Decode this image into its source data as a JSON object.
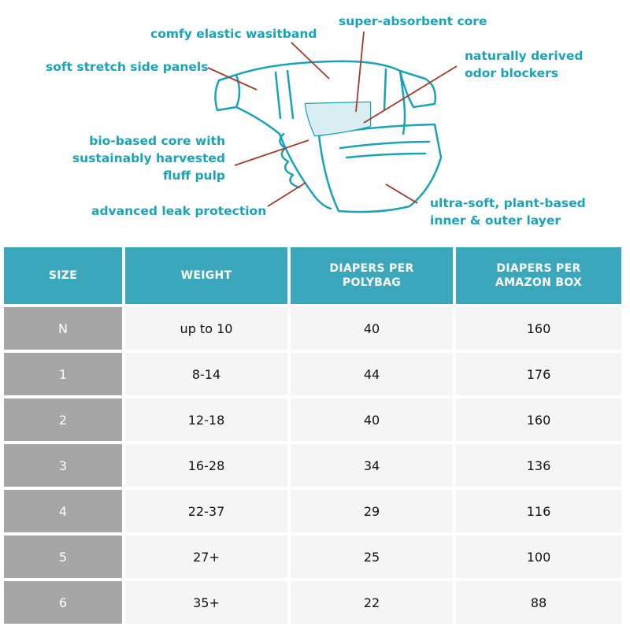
{
  "diagram": {
    "callouts": {
      "waistband": "comfy elastic wasitband",
      "core": "super-absorbent core",
      "side_panels": "soft stretch side panels",
      "odor_line1": "naturally derived",
      "odor_line2": "odor blockers",
      "bio_line1": "bio-based core with",
      "bio_line2": "sustainably harvested",
      "bio_line3": "fluff pulp",
      "leak": "advanced leak protection",
      "layer_line1": "ultra-soft, plant-based",
      "layer_line2": "inner & outer layer"
    },
    "colors": {
      "teal": "#1aa3b8",
      "leader": "#a33a2c"
    }
  },
  "table": {
    "headers": [
      "SIZE",
      "WEIGHT",
      "DIAPERS PER POLYBAG",
      "DIAPERS PER AMAZON BOX"
    ],
    "rows": [
      [
        "N",
        "up to 10",
        "40",
        "160"
      ],
      [
        "1",
        "8-14",
        "44",
        "176"
      ],
      [
        "2",
        "12-18",
        "40",
        "160"
      ],
      [
        "3",
        "16-28",
        "34",
        "136"
      ],
      [
        "4",
        "22-37",
        "29",
        "116"
      ],
      [
        "5",
        "27+",
        "25",
        "100"
      ],
      [
        "6",
        "35+",
        "22",
        "88"
      ]
    ],
    "colors": {
      "header_bg": "#3aa7bd",
      "size_col_bg": "#a6a6a6",
      "cell_bg": "#f5f5f5"
    }
  }
}
